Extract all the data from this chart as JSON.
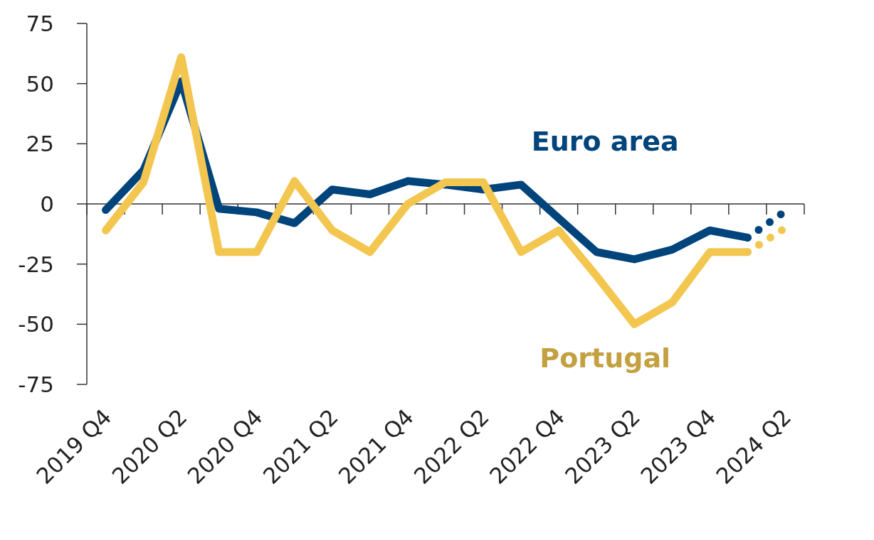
{
  "chart_data": {
    "type": "line",
    "categories": [
      "2019 Q4",
      null,
      "2020 Q2",
      null,
      "2020 Q4",
      null,
      "2021 Q2",
      null,
      "2021 Q4",
      null,
      "2022 Q2",
      null,
      "2022 Q4",
      null,
      "2023 Q2",
      null,
      "2023 Q4",
      null,
      "2024 Q2"
    ],
    "series": [
      {
        "name": "Euro area",
        "color": "#00447c",
        "values": [
          -2.5,
          14,
          51,
          -2,
          -3.5,
          -8,
          6,
          4,
          9.5,
          8,
          6,
          8,
          -6,
          -20,
          -23,
          -19,
          -11,
          -14,
          null
        ]
      },
      {
        "name": "Portugal",
        "color": "#f2c64f",
        "values": [
          -11,
          9,
          61,
          -20,
          -20,
          9.5,
          -11,
          -20,
          0,
          9,
          9,
          -20,
          -11,
          -30,
          -50,
          -41,
          -20,
          -20,
          null
        ]
      },
      {
        "color": "#00447c",
        "line_style": "dotted",
        "values": [
          null,
          null,
          null,
          null,
          null,
          null,
          null,
          null,
          null,
          null,
          null,
          null,
          null,
          null,
          null,
          null,
          null,
          -14,
          -3
        ]
      },
      {
        "color": "#f2c64f",
        "line_style": "dotted",
        "values": [
          null,
          null,
          null,
          null,
          null,
          null,
          null,
          null,
          null,
          null,
          null,
          null,
          null,
          null,
          null,
          null,
          null,
          -20,
          -10
        ]
      }
    ],
    "ylim": [
      -75,
      75
    ],
    "yticks": [
      -75,
      -50,
      -25,
      0,
      25,
      50,
      75
    ],
    "ref_lines": [
      {
        "axis": "y",
        "value": 0
      }
    ],
    "line_style": "solid"
  }
}
